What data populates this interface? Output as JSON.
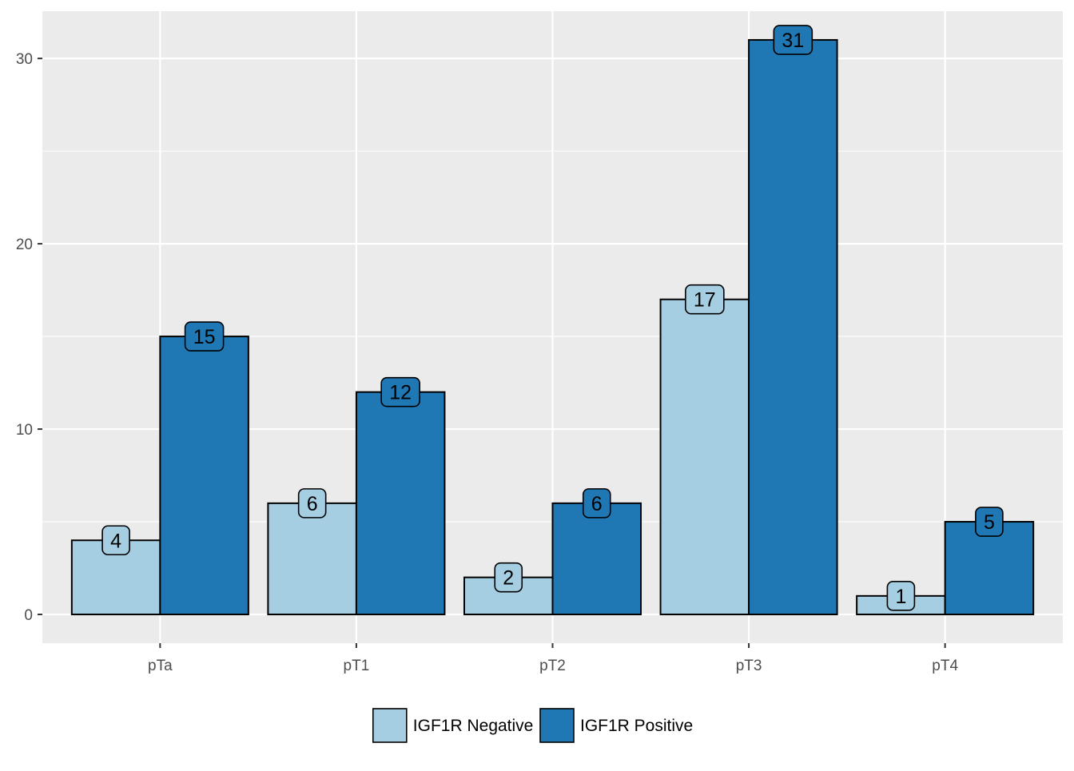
{
  "chart_data": {
    "type": "bar",
    "categories": [
      "pTa",
      "pT1",
      "pT2",
      "pT3",
      "pT4"
    ],
    "series": [
      {
        "name": "IGF1R Negative",
        "values": [
          4,
          6,
          2,
          17,
          1
        ],
        "color": "#a6cee3"
      },
      {
        "name": "IGF1R Positive",
        "values": [
          15,
          12,
          6,
          31,
          5
        ],
        "color": "#1f78b4"
      }
    ],
    "yticks": [
      0,
      10,
      20,
      30
    ],
    "ylim": [
      -1.55,
      32.55
    ],
    "title": "",
    "xlabel": "",
    "ylabel": "",
    "grid": true,
    "legend_position": "bottom",
    "panel_background": "#ebebeb",
    "gridline_color": "#ffffff"
  }
}
